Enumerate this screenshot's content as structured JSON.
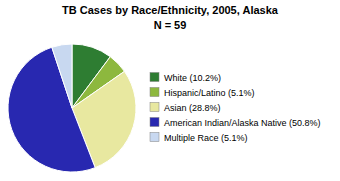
{
  "chart_data": {
    "type": "pie",
    "title": "TB Cases by Race/Ethnicity, 2005, Alaska",
    "subtitle": "N = 59",
    "categories": [
      "White (10.2%)",
      "Hispanic/Latino (5.1%)",
      "Asian (28.8%)",
      "American Indian/Alaska Native (50.8%)",
      "Multiple Race (5.1%)"
    ],
    "values": [
      10.2,
      5.1,
      28.8,
      50.8,
      5.1
    ],
    "colors": [
      "#2e7d32",
      "#8db83e",
      "#e8e8a0",
      "#2828b0",
      "#c8d8f0"
    ],
    "legend": "right"
  }
}
